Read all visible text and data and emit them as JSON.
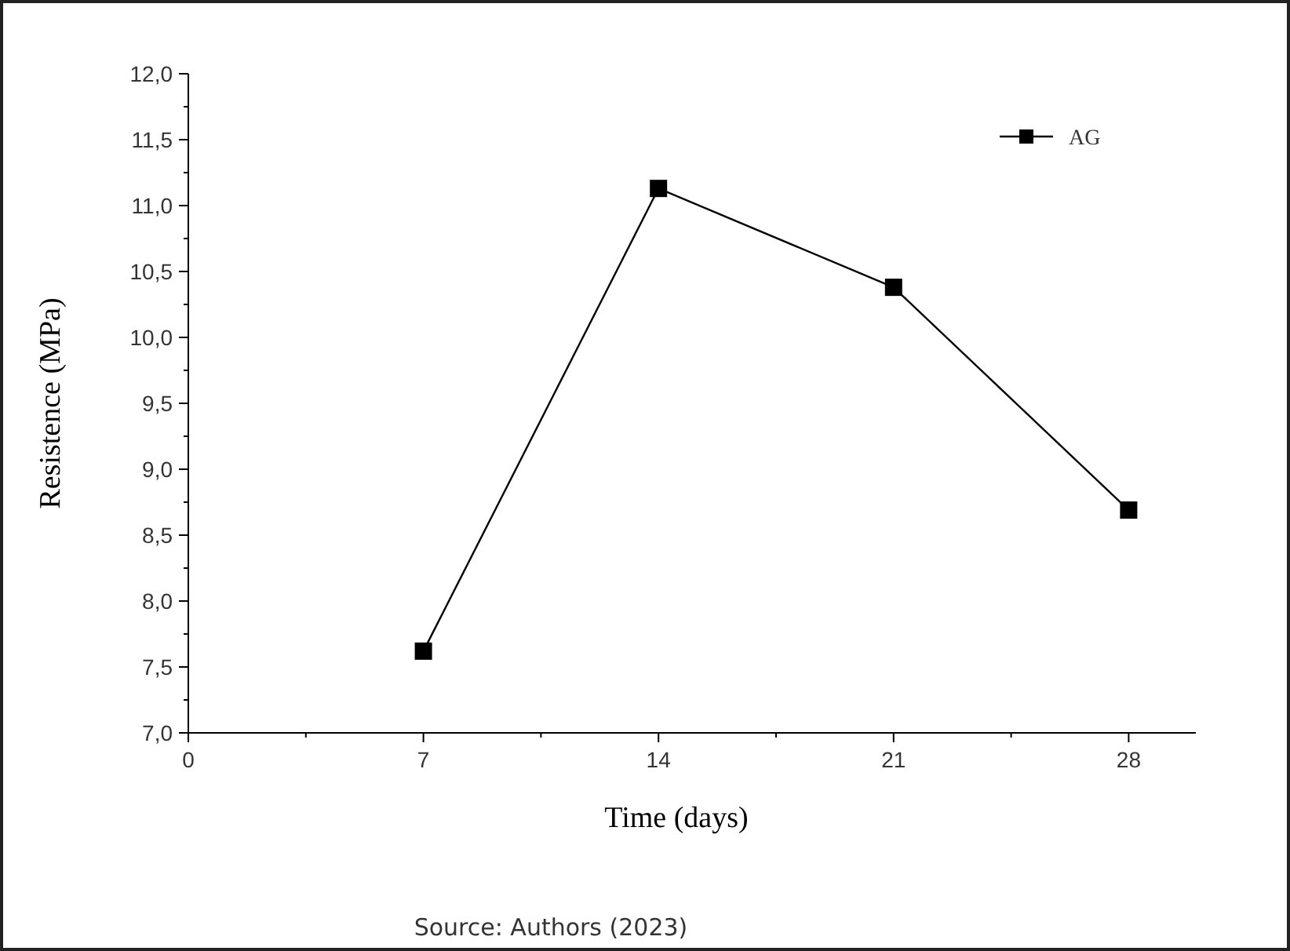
{
  "chart_data": {
    "type": "line",
    "xlabel": "Time (days)",
    "ylabel": "Resistence (MPa)",
    "annotations": [
      "Source: Authors (2023)"
    ],
    "x": [
      7,
      14,
      21,
      28
    ],
    "series": [
      {
        "name": "AG",
        "color": "#000000",
        "values": [
          7.62,
          11.13,
          10.38,
          8.69
        ]
      }
    ],
    "xlim": [
      0,
      30
    ],
    "xticks": [
      0,
      7,
      14,
      21,
      28
    ],
    "ylim": [
      7,
      12
    ],
    "yticks": [
      {
        "value": 7,
        "label": "7,0"
      },
      {
        "value": 7.5,
        "label": "7,5"
      },
      {
        "value": 8,
        "label": "8,0"
      },
      {
        "value": 8.5,
        "label": "8,5"
      },
      {
        "value": 9,
        "label": "9,0"
      },
      {
        "value": 9.5,
        "label": "9,5"
      },
      {
        "value": 10,
        "label": "10,0"
      },
      {
        "value": 10.5,
        "label": "10,5"
      },
      {
        "value": 11,
        "label": "11,0"
      },
      {
        "value": 11.5,
        "label": "11,5"
      },
      {
        "value": 12,
        "label": "12,0"
      }
    ],
    "grid": false,
    "legend": "top right",
    "marker": "square",
    "line_style": "solid"
  }
}
